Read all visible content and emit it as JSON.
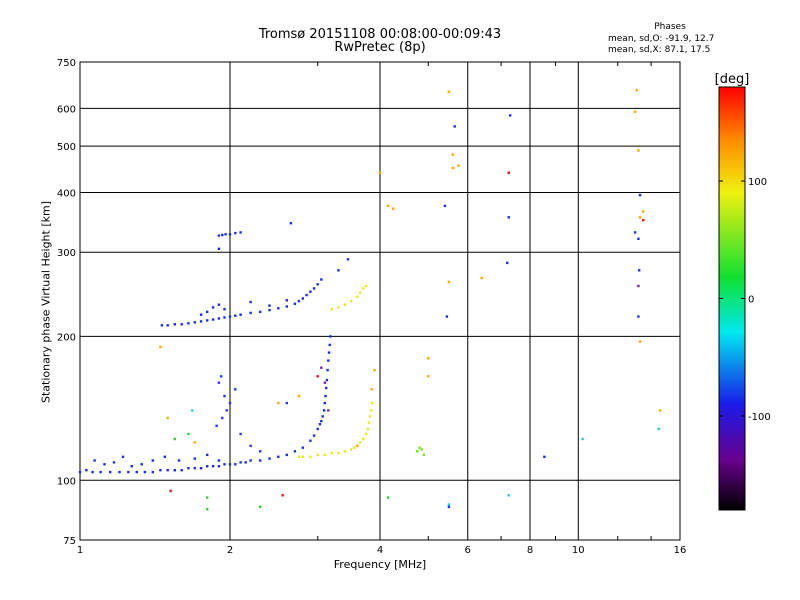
{
  "title_line1": "Tromsø 20151108 00:08:00-00:09:43",
  "title_line2": "RwPretec (8p)",
  "stats": {
    "heading": "Phases",
    "line_o": "mean, sd,O: -91.9, 12.7",
    "line_x": "mean, sd,X: 87.1, 17.5"
  },
  "colorbar": {
    "label": "[deg]",
    "ticks": [
      "100",
      "0",
      "-100"
    ],
    "tick_values": [
      100,
      0,
      -100
    ],
    "range": [
      -180,
      180
    ],
    "palette": "rainbow (black-purple-blue-cyan-green-yellow-orange-red)"
  },
  "chart_data": {
    "type": "scatter",
    "title": "Tromsø 20151108 00:08:00-00:09:43",
    "subtitle": "RwPretec (8p)",
    "xlabel": "Frequency [MHz]",
    "ylabel": "Stationary phase Virtual Height [km]",
    "xscale": "log",
    "yscale": "log",
    "xlim": [
      1,
      16
    ],
    "ylim": [
      75,
      750
    ],
    "xticks": [
      1,
      2,
      4,
      6,
      8,
      10,
      16
    ],
    "xtick_labels": [
      "1",
      "2",
      "4",
      "6",
      "8",
      "10",
      "16"
    ],
    "yticks": [
      75,
      100,
      200,
      300,
      400,
      500,
      600,
      750
    ],
    "ytick_labels": [
      "75",
      "100",
      "200",
      "300",
      "400",
      "500",
      "600",
      "750"
    ],
    "grid": true,
    "color_encodes": "phase [deg]",
    "series": [
      {
        "color": "#1a2ee0",
        "phase": -95,
        "points": [
          [
            1.0,
            104
          ],
          [
            1.03,
            105
          ],
          [
            1.06,
            104
          ],
          [
            1.1,
            104
          ],
          [
            1.15,
            104
          ],
          [
            1.2,
            104
          ],
          [
            1.25,
            104
          ],
          [
            1.3,
            104
          ],
          [
            1.35,
            104
          ],
          [
            1.4,
            104
          ],
          [
            1.45,
            105
          ],
          [
            1.5,
            105
          ],
          [
            1.55,
            105
          ],
          [
            1.6,
            105
          ],
          [
            1.65,
            106
          ],
          [
            1.7,
            106
          ],
          [
            1.75,
            106
          ],
          [
            1.8,
            107
          ],
          [
            1.85,
            107
          ],
          [
            1.9,
            107
          ],
          [
            1.95,
            108
          ],
          [
            2.0,
            108
          ],
          [
            2.05,
            108
          ],
          [
            2.1,
            109
          ],
          [
            2.15,
            109
          ],
          [
            2.2,
            110
          ],
          [
            2.3,
            110
          ],
          [
            2.4,
            111
          ],
          [
            2.5,
            112
          ],
          [
            2.6,
            113
          ],
          [
            2.7,
            115
          ],
          [
            2.8,
            117
          ],
          [
            2.9,
            121
          ],
          [
            2.95,
            124
          ],
          [
            3.0,
            128
          ],
          [
            3.03,
            131
          ],
          [
            3.05,
            133
          ],
          [
            3.07,
            136
          ],
          [
            3.09,
            140
          ],
          [
            3.1,
            145
          ],
          [
            3.11,
            150
          ],
          [
            3.12,
            156
          ],
          [
            3.13,
            162
          ],
          [
            3.14,
            170
          ],
          [
            3.15,
            178
          ],
          [
            3.16,
            185
          ],
          [
            3.17,
            192
          ],
          [
            3.18,
            200
          ],
          [
            1.07,
            110
          ],
          [
            1.12,
            108
          ],
          [
            1.17,
            109
          ],
          [
            1.22,
            112
          ],
          [
            1.27,
            107
          ],
          [
            1.33,
            108
          ],
          [
            1.4,
            110
          ],
          [
            1.48,
            112
          ],
          [
            1.58,
            110
          ],
          [
            1.7,
            111
          ],
          [
            1.8,
            113
          ],
          [
            1.9,
            110
          ]
        ]
      },
      {
        "color": "#1a2ee0",
        "phase": -95,
        "points": [
          [
            1.46,
            211
          ],
          [
            1.5,
            211
          ],
          [
            1.55,
            212
          ],
          [
            1.6,
            212
          ],
          [
            1.65,
            213
          ],
          [
            1.7,
            214
          ],
          [
            1.75,
            215
          ],
          [
            1.8,
            216
          ],
          [
            1.85,
            217
          ],
          [
            1.9,
            218
          ],
          [
            1.95,
            219
          ],
          [
            2.0,
            220
          ],
          [
            2.05,
            221
          ],
          [
            2.1,
            222
          ],
          [
            2.2,
            224
          ],
          [
            2.3,
            225
          ],
          [
            2.4,
            227
          ],
          [
            2.5,
            229
          ],
          [
            2.6,
            231
          ],
          [
            2.7,
            234
          ],
          [
            2.75,
            237
          ],
          [
            2.8,
            240
          ],
          [
            2.85,
            244
          ],
          [
            2.9,
            248
          ],
          [
            2.95,
            252
          ],
          [
            3.0,
            257
          ],
          [
            3.05,
            263
          ],
          [
            1.75,
            222
          ],
          [
            1.8,
            225
          ],
          [
            1.85,
            230
          ],
          [
            1.9,
            233
          ],
          [
            1.95,
            228
          ],
          [
            2.2,
            236
          ],
          [
            2.4,
            232
          ],
          [
            2.6,
            238
          ]
        ]
      },
      {
        "color": "#1a2ee0",
        "phase": -100,
        "points": [
          [
            1.9,
            325
          ],
          [
            1.93,
            326
          ],
          [
            1.96,
            327
          ],
          [
            2.0,
            327
          ],
          [
            2.05,
            329
          ],
          [
            2.1,
            330
          ],
          [
            2.65,
            345
          ],
          [
            3.3,
            275
          ],
          [
            3.45,
            290
          ],
          [
            1.9,
            305
          ]
        ]
      },
      {
        "color": "#2838e8",
        "phase": -98,
        "points": [
          [
            1.9,
            160
          ],
          [
            1.95,
            150
          ],
          [
            2.0,
            145
          ],
          [
            1.92,
            165
          ],
          [
            1.97,
            140
          ],
          [
            2.05,
            155
          ],
          [
            1.88,
            130
          ],
          [
            1.93,
            135
          ],
          [
            2.1,
            125
          ],
          [
            2.2,
            118
          ],
          [
            2.3,
            115
          ],
          [
            2.6,
            145
          ]
        ]
      },
      {
        "color": "#e8e820",
        "phase": 90,
        "points": [
          [
            2.75,
            112
          ],
          [
            2.8,
            112
          ],
          [
            2.9,
            112
          ],
          [
            3.0,
            113
          ],
          [
            3.1,
            113
          ],
          [
            3.2,
            114
          ],
          [
            3.3,
            114
          ],
          [
            3.4,
            115
          ],
          [
            3.5,
            116
          ],
          [
            3.55,
            117
          ],
          [
            3.6,
            118
          ],
          [
            3.65,
            120
          ],
          [
            3.7,
            122
          ],
          [
            3.75,
            125
          ],
          [
            3.78,
            128
          ],
          [
            3.8,
            132
          ],
          [
            3.82,
            136
          ],
          [
            3.84,
            140
          ],
          [
            3.86,
            145
          ]
        ]
      },
      {
        "color": "#e8e820",
        "phase": 90,
        "points": [
          [
            3.2,
            228
          ],
          [
            3.3,
            230
          ],
          [
            3.4,
            233
          ],
          [
            3.5,
            237
          ],
          [
            3.6,
            242
          ],
          [
            3.65,
            247
          ],
          [
            3.7,
            252
          ],
          [
            3.75,
            255
          ]
        ]
      },
      {
        "color": "#7be020",
        "phase": 40,
        "points": [
          [
            4.75,
            115
          ],
          [
            4.8,
            117
          ],
          [
            4.85,
            116
          ],
          [
            4.9,
            113
          ]
        ]
      },
      {
        "color": "#ffa500",
        "phase": 120,
        "points": [
          [
            5.5,
            650
          ],
          [
            5.6,
            480
          ],
          [
            5.75,
            455
          ],
          [
            5.6,
            450
          ],
          [
            6.4,
            265
          ],
          [
            5.5,
            260
          ],
          [
            5.0,
            180
          ],
          [
            5.0,
            165
          ],
          [
            4.0,
            440
          ],
          [
            4.25,
            370
          ],
          [
            4.15,
            375
          ],
          [
            3.9,
            170
          ],
          [
            3.85,
            155
          ],
          [
            7.25,
            440
          ],
          [
            13.0,
            590
          ],
          [
            13.1,
            655
          ],
          [
            13.2,
            490
          ],
          [
            13.3,
            355
          ],
          [
            13.5,
            365
          ],
          [
            14.6,
            140
          ],
          [
            13.3,
            195
          ],
          [
            3.6,
            118
          ],
          [
            2.75,
            150
          ],
          [
            2.5,
            145
          ],
          [
            1.5,
            135
          ],
          [
            1.7,
            120
          ],
          [
            1.45,
            190
          ]
        ]
      },
      {
        "color": "#e81010",
        "phase": 170,
        "points": [
          [
            3.0,
            165
          ],
          [
            7.25,
            440
          ],
          [
            13.5,
            350
          ],
          [
            1.52,
            95
          ],
          [
            2.55,
            93
          ]
        ]
      },
      {
        "color": "#1a2ee0",
        "phase": -95,
        "points": [
          [
            5.65,
            550
          ],
          [
            5.4,
            375
          ],
          [
            5.45,
            220
          ],
          [
            7.3,
            580
          ],
          [
            7.25,
            355
          ],
          [
            7.2,
            285
          ],
          [
            8.55,
            112
          ],
          [
            13.3,
            395
          ],
          [
            13.0,
            330
          ],
          [
            13.2,
            320
          ],
          [
            13.25,
            275
          ],
          [
            13.2,
            220
          ],
          [
            5.5,
            88
          ]
        ]
      },
      {
        "color": "#28c8e0",
        "phase": -30,
        "points": [
          [
            7.25,
            93
          ],
          [
            5.5,
            89
          ],
          [
            10.2,
            122
          ],
          [
            14.5,
            128
          ],
          [
            1.68,
            140
          ]
        ]
      },
      {
        "color": "#30d030",
        "phase": 20,
        "points": [
          [
            1.55,
            122
          ],
          [
            1.65,
            125
          ],
          [
            1.8,
            87
          ],
          [
            2.3,
            88
          ],
          [
            4.15,
            92
          ],
          [
            1.8,
            92
          ]
        ]
      },
      {
        "color": "#8020a0",
        "phase": -140,
        "points": [
          [
            3.05,
            172
          ],
          [
            3.1,
            160
          ],
          [
            13.2,
            255
          ],
          [
            3.15,
            140
          ]
        ]
      }
    ]
  }
}
